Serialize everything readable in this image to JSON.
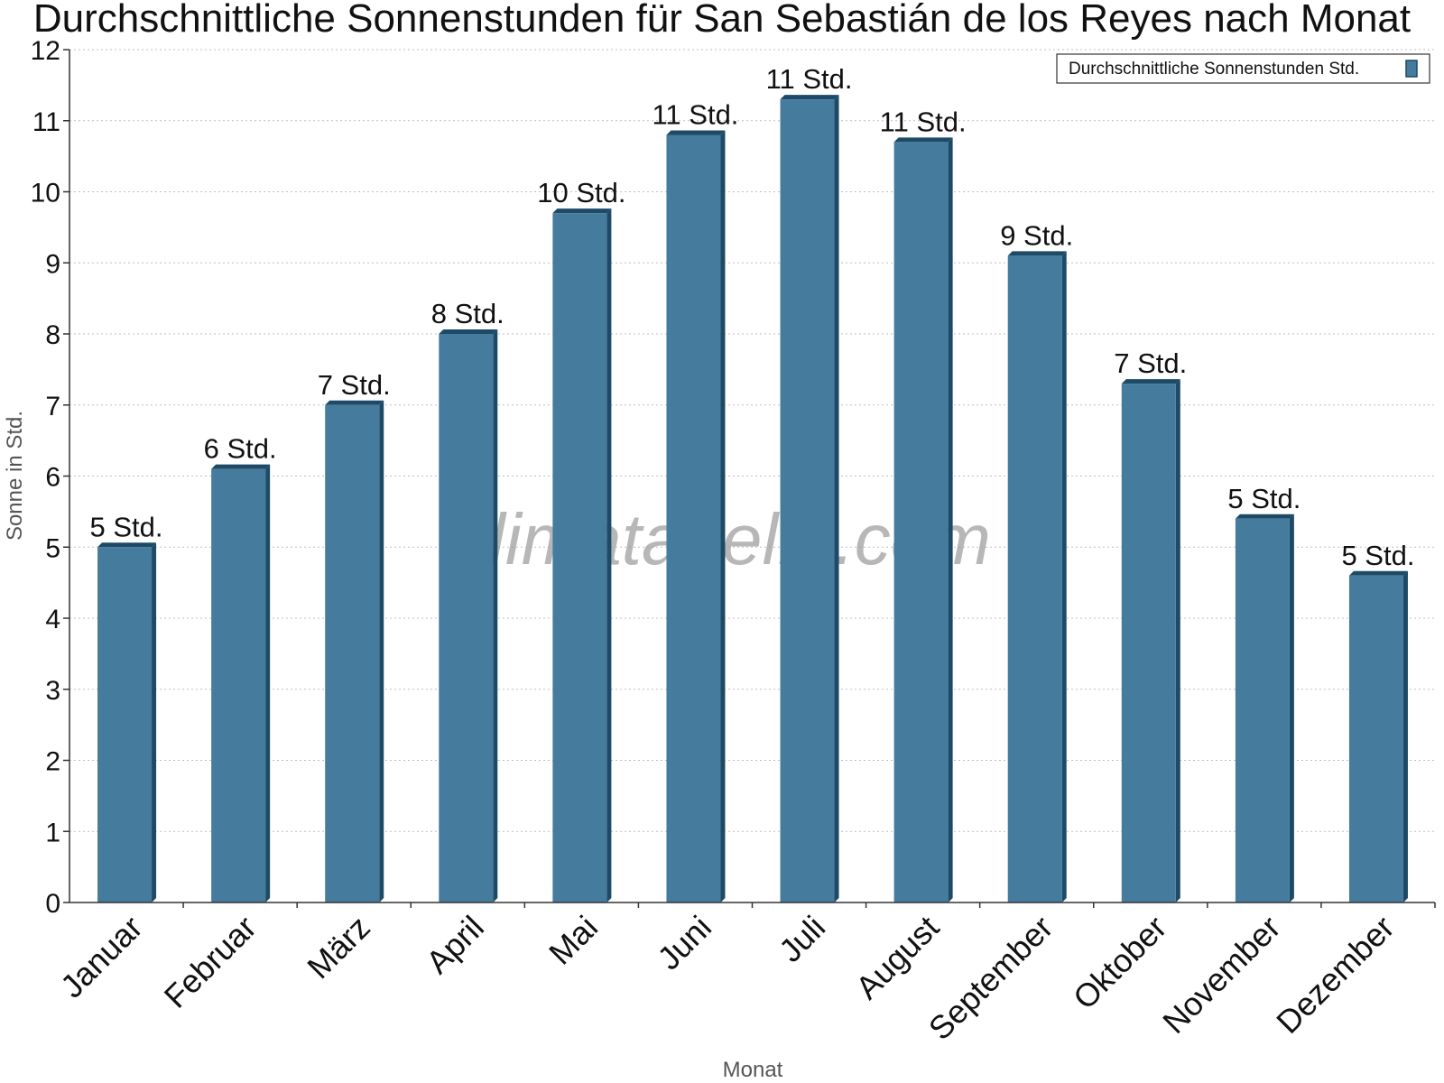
{
  "chart_data": {
    "type": "bar",
    "title": "Durchschnittliche Sonnenstunden für San Sebastián de los Reyes nach Monat",
    "xlabel": "Monat",
    "ylabel": "Sonne in Std.",
    "ylim": [
      0,
      12
    ],
    "yticks": [
      "0",
      "1",
      "2",
      "3",
      "4",
      "5",
      "6",
      "7",
      "8",
      "9",
      "10",
      "11",
      "12"
    ],
    "grid": true,
    "legend_position": "top-right",
    "categories": [
      "Januar",
      "Februar",
      "März",
      "April",
      "Mai",
      "Juni",
      "Juli",
      "August",
      "September",
      "Oktober",
      "November",
      "Dezember"
    ],
    "series": [
      {
        "name": "Durchschnittliche Sonnenstunden Std.",
        "color": "#457b9d",
        "values": [
          5.0,
          6.1,
          7.0,
          8.0,
          9.7,
          10.8,
          11.3,
          10.7,
          9.1,
          7.3,
          5.4,
          4.6
        ],
        "labels": [
          "5 Std.",
          "6 Std.",
          "7 Std.",
          "8 Std.",
          "10 Std.",
          "11 Std.",
          "11 Std.",
          "11 Std.",
          "9 Std.",
          "7 Std.",
          "5 Std.",
          "5 Std."
        ]
      }
    ],
    "watermark": "klimatabelle.com"
  }
}
